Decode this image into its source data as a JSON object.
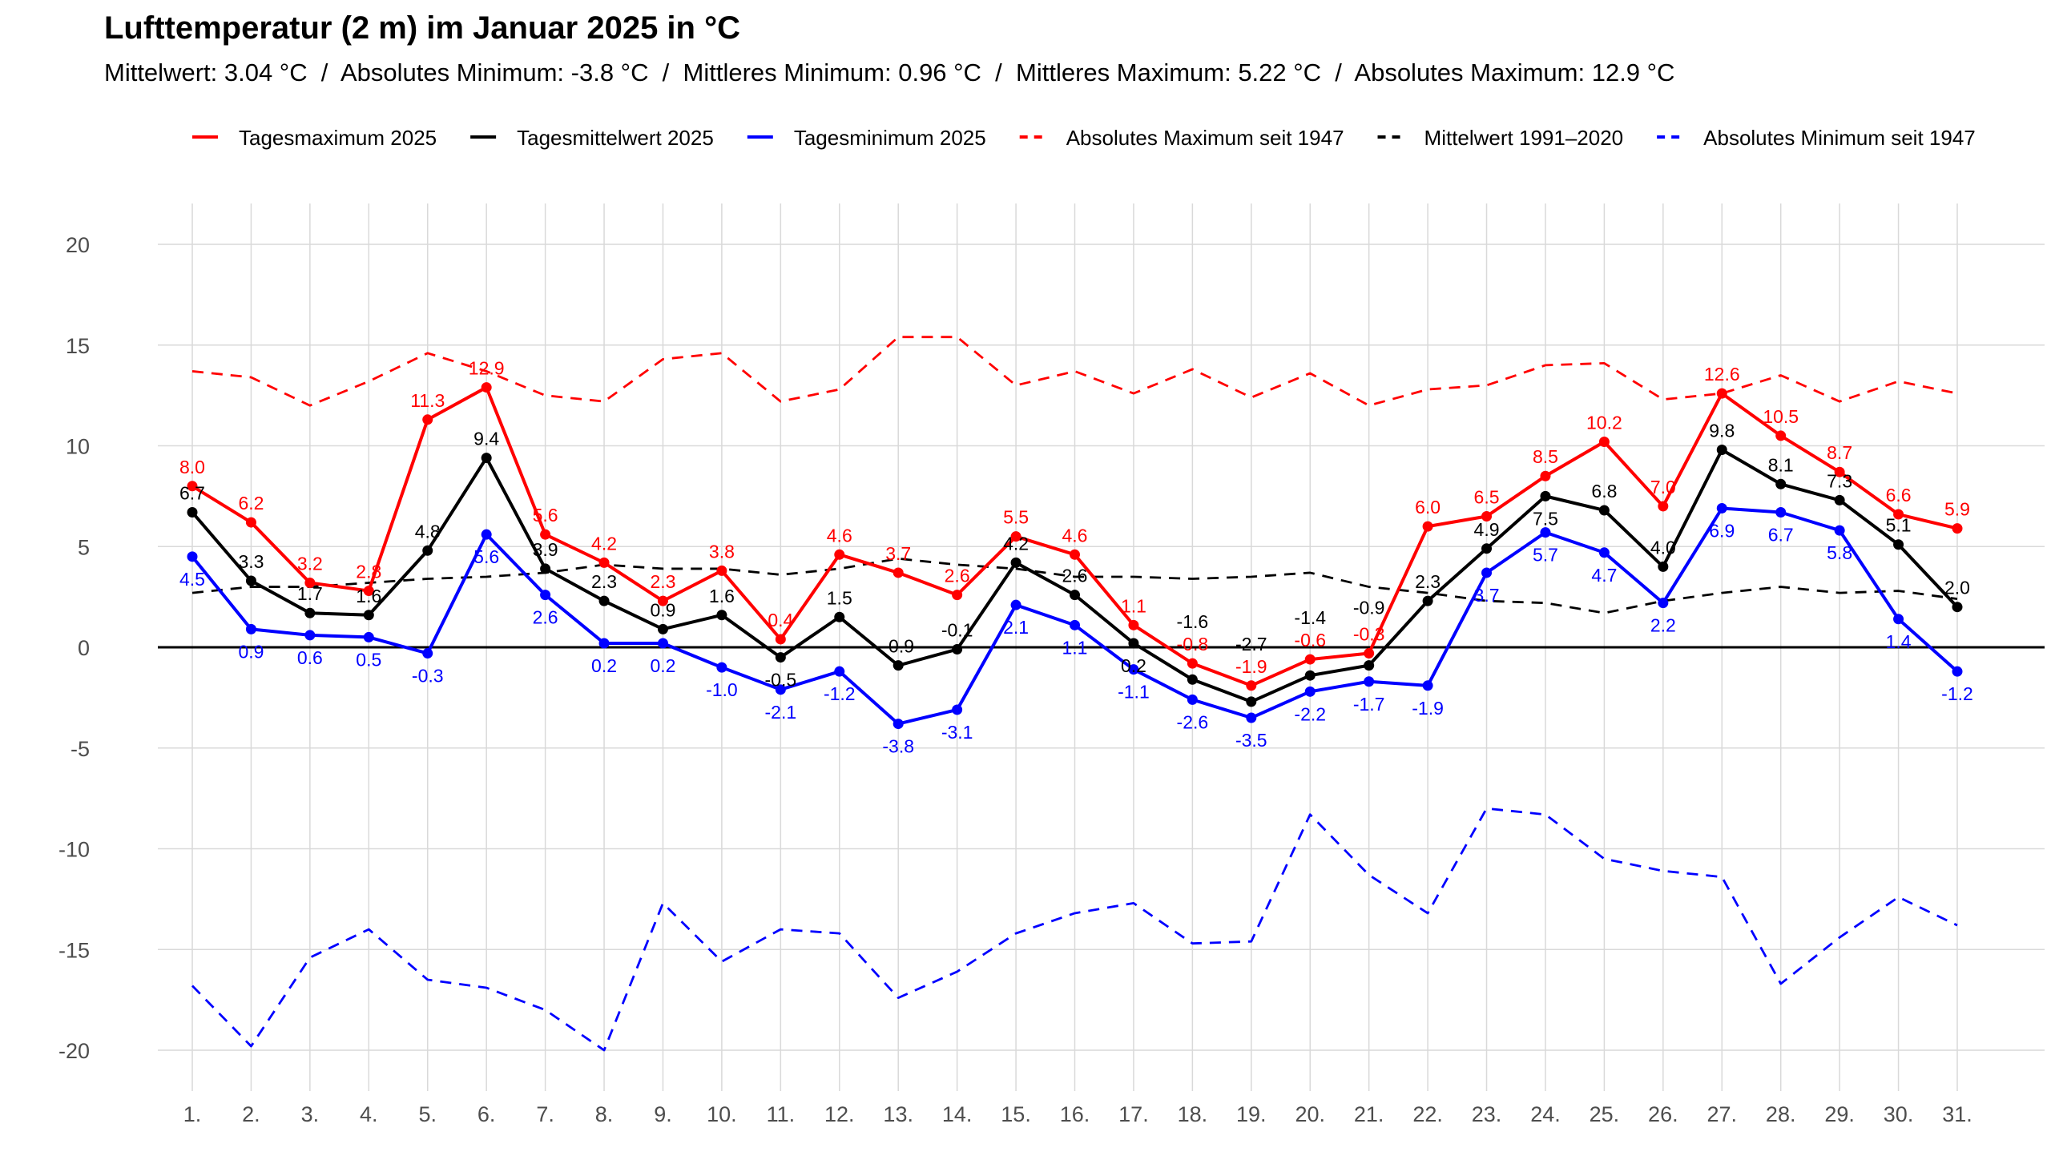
{
  "chart_data": {
    "type": "line",
    "title": "Lufttemperatur (2 m) im Januar 2025 in °C",
    "subtitle": "Mittelwert: 3.04 °C  /  Absolutes Minimum: -3.8 °C  /  Mittleres Minimum: 0.96 °C  /  Mittleres Maximum: 5.22 °C  /  Absolutes Maximum: 12.9 °C",
    "xlabel": "",
    "ylabel": "",
    "ylim": [
      -20,
      20
    ],
    "yticks": [
      -20,
      -15,
      -10,
      -5,
      0,
      5,
      10,
      15,
      20
    ],
    "grid": true,
    "legend_position": "top",
    "x": [
      "1.",
      "2.",
      "3.",
      "4.",
      "5.",
      "6.",
      "7.",
      "8.",
      "9.",
      "10.",
      "11.",
      "12.",
      "13.",
      "14.",
      "15.",
      "16.",
      "17.",
      "18.",
      "19.",
      "20.",
      "21.",
      "22.",
      "23.",
      "24.",
      "25.",
      "26.",
      "27.",
      "28.",
      "29.",
      "30.",
      "31."
    ],
    "series": [
      {
        "name": "Tagesmaximum 2025",
        "color": "#ff0000",
        "dash": false,
        "labels": "above",
        "values": [
          8.0,
          6.2,
          3.2,
          2.8,
          11.3,
          12.9,
          5.6,
          4.2,
          2.3,
          3.8,
          0.4,
          4.6,
          3.7,
          2.6,
          5.5,
          4.6,
          1.1,
          -0.8,
          -1.9,
          -0.6,
          -0.3,
          6.0,
          6.5,
          8.5,
          10.2,
          7.0,
          12.6,
          10.5,
          8.7,
          6.6,
          5.9
        ]
      },
      {
        "name": "Tagesmittelwert 2025",
        "color": "#000000",
        "dash": false,
        "labels": "above",
        "values": [
          6.7,
          3.3,
          1.7,
          1.6,
          4.8,
          9.4,
          3.9,
          2.3,
          0.9,
          1.6,
          -0.5,
          1.5,
          -0.9,
          -0.1,
          4.2,
          2.6,
          0.2,
          -1.6,
          -2.7,
          -1.4,
          -0.9,
          2.3,
          4.9,
          7.5,
          6.8,
          4.0,
          9.8,
          8.1,
          7.3,
          5.1,
          2.0
        ]
      },
      {
        "name": "Tagesminimum 2025",
        "color": "#0000ff",
        "dash": false,
        "labels": "below",
        "values": [
          4.5,
          0.9,
          0.6,
          0.5,
          -0.3,
          5.6,
          2.6,
          0.2,
          0.2,
          -1.0,
          -2.1,
          -1.2,
          -3.8,
          -3.1,
          2.1,
          1.1,
          -1.1,
          -2.6,
          -3.5,
          -2.2,
          -1.7,
          -1.9,
          3.7,
          5.7,
          4.7,
          2.2,
          6.9,
          6.7,
          5.8,
          1.4,
          -1.2
        ]
      },
      {
        "name": "Absolutes Maximum seit 1947",
        "color": "#ff0000",
        "dash": true,
        "values": [
          13.7,
          13.4,
          12.0,
          13.2,
          14.6,
          13.7,
          12.5,
          12.2,
          14.3,
          14.6,
          12.2,
          12.8,
          15.4,
          15.4,
          13.0,
          13.7,
          12.6,
          13.8,
          12.4,
          13.6,
          12.0,
          12.8,
          13.0,
          14.0,
          14.1,
          12.3,
          12.6,
          13.5,
          12.2,
          13.2,
          12.6
        ]
      },
      {
        "name": "Mittelwert 1991–2020",
        "color": "#000000",
        "dash": true,
        "values": [
          2.7,
          3.0,
          3.0,
          3.2,
          3.4,
          3.5,
          3.7,
          4.1,
          3.9,
          3.9,
          3.6,
          3.9,
          4.4,
          4.1,
          3.9,
          3.5,
          3.5,
          3.4,
          3.5,
          3.7,
          3.0,
          2.7,
          2.3,
          2.2,
          1.7,
          2.3,
          2.7,
          3.0,
          2.7,
          2.8,
          2.4
        ]
      },
      {
        "name": "Absolutes Minimum seit 1947",
        "color": "#0000ff",
        "dash": true,
        "values": [
          -16.8,
          -19.8,
          -15.4,
          -14.0,
          -16.5,
          -16.9,
          -18.0,
          -20.0,
          -12.7,
          -15.6,
          -14.0,
          -14.2,
          -17.4,
          -16.1,
          -14.2,
          -13.2,
          -12.7,
          -14.7,
          -14.6,
          -8.3,
          -11.3,
          -13.2,
          -8.0,
          -8.3,
          -10.5,
          -11.1,
          -11.4,
          -16.7,
          -14.4,
          -12.4,
          -13.8
        ]
      }
    ]
  }
}
